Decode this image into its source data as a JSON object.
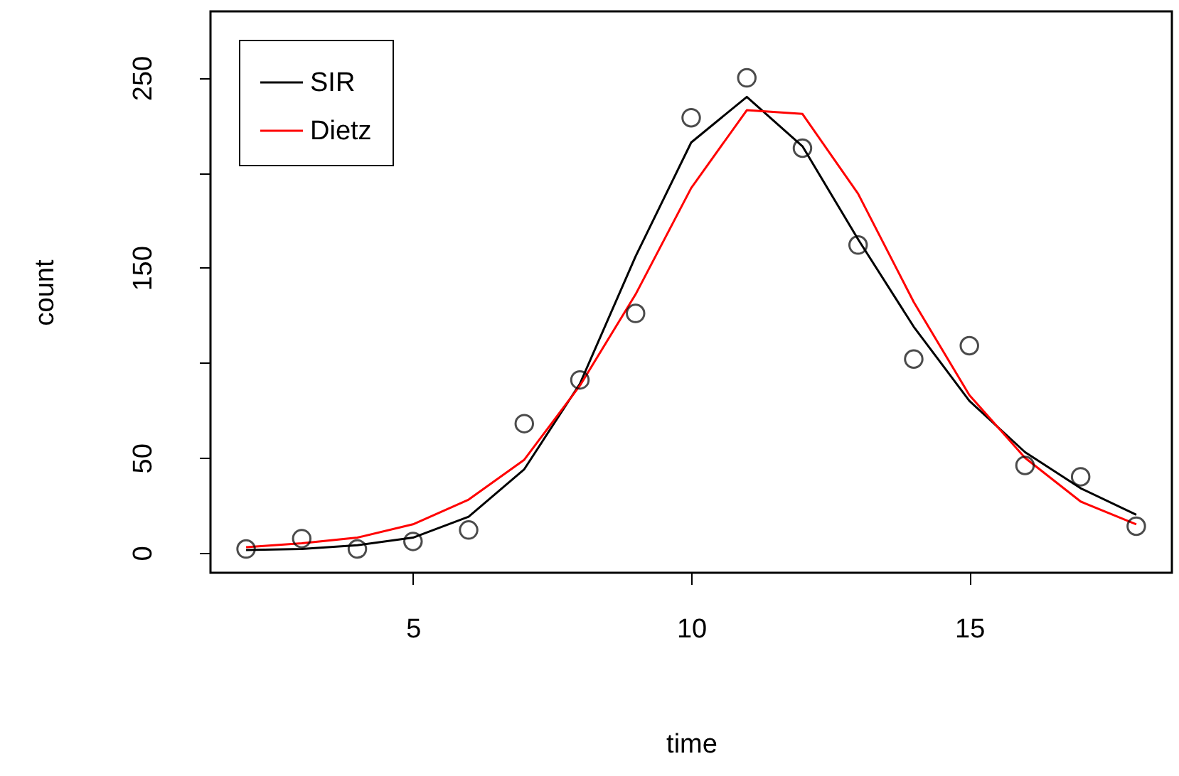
{
  "chart_data": {
    "type": "line",
    "xlabel": "time",
    "ylabel": "count",
    "xlim": [
      1.36,
      18.64
    ],
    "ylim": [
      -10.5,
      285
    ],
    "xticks": [
      5,
      10,
      15
    ],
    "yticks": [
      0,
      50,
      {
        "value": 100,
        "label": null
      },
      150,
      {
        "value": 200,
        "label": null
      },
      250
    ],
    "grid": false,
    "legend": "top left",
    "x": [
      2,
      3,
      4,
      5,
      6,
      7,
      8,
      9,
      10,
      11,
      12,
      13,
      14,
      15,
      16,
      17,
      18
    ],
    "series": [
      {
        "type": "scatter",
        "marker": "circle",
        "color": "#000000",
        "values": [
          2,
          7.5,
          2,
          6,
          12,
          68,
          91,
          126,
          229,
          250,
          213,
          162,
          102,
          109,
          46,
          40,
          14
        ]
      },
      {
        "name": "SIR",
        "color": "#000000",
        "values": [
          1.5,
          2,
          4,
          8,
          19,
          44,
          89,
          156,
          216,
          240,
          214,
          165,
          119,
          80,
          53,
          34,
          20
        ]
      },
      {
        "name": "Dietz",
        "color": "#ff0000",
        "values": [
          3,
          5,
          8,
          15,
          28,
          49,
          88,
          136,
          192,
          233,
          231,
          189,
          132,
          83,
          50,
          27,
          15
        ]
      }
    ]
  }
}
